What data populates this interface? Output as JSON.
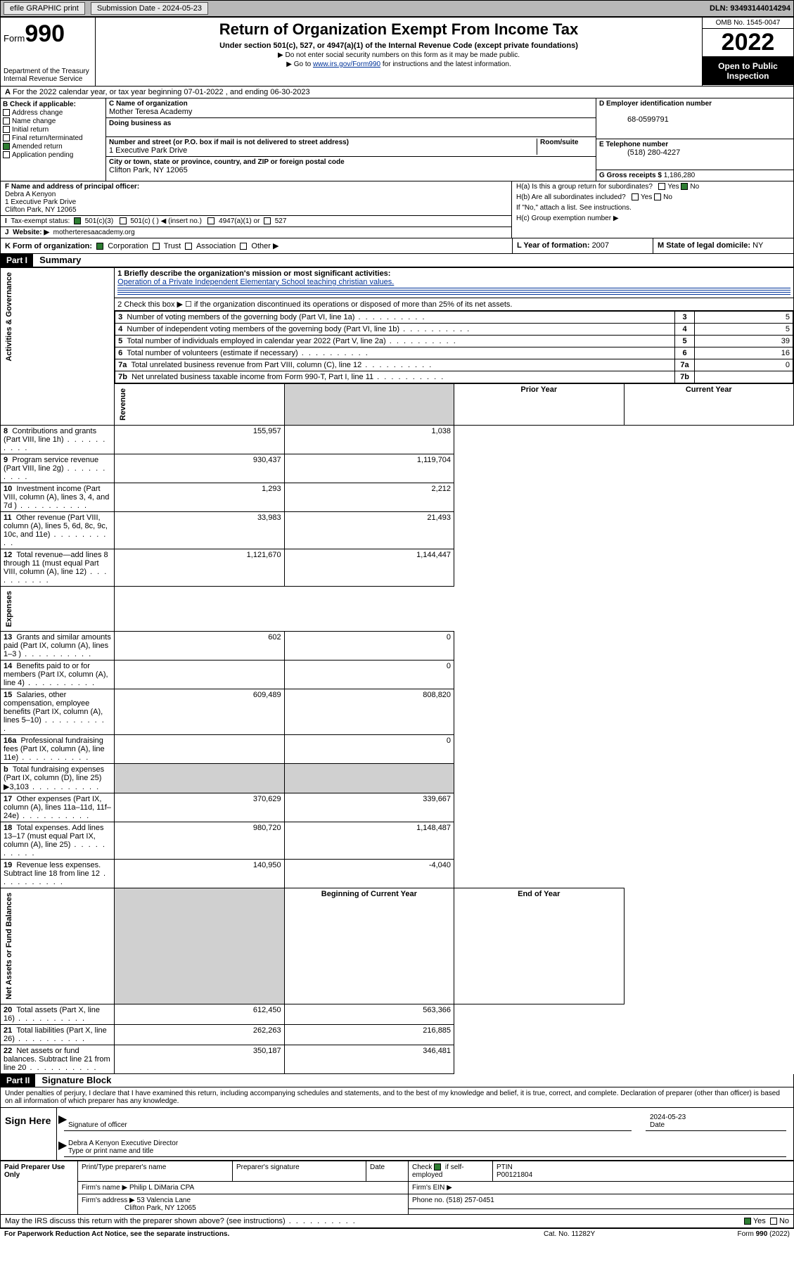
{
  "topbar": {
    "efile": "efile GRAPHIC print",
    "subdate_label": "Submission Date - ",
    "subdate": "2024-05-23",
    "dln_label": "DLN: ",
    "dln": "93493144014294"
  },
  "header": {
    "form_prefix": "Form",
    "form_no": "990",
    "dept": "Department of the Treasury",
    "irs": "Internal Revenue Service",
    "title": "Return of Organization Exempt From Income Tax",
    "subtitle": "Under section 501(c), 527, or 4947(a)(1) of the Internal Revenue Code (except private foundations)",
    "note1": "▶ Do not enter social security numbers on this form as it may be made public.",
    "note2_pre": "▶ Go to ",
    "note2_link": "www.irs.gov/Form990",
    "note2_post": " for instructions and the latest information.",
    "omb": "OMB No. 1545-0047",
    "year": "2022",
    "inspect": "Open to Public Inspection"
  },
  "lineA": "For the 2022 calendar year, or tax year beginning 07-01-2022   , and ending 06-30-2023",
  "boxB": {
    "label": "B Check if applicable:",
    "items": [
      "Address change",
      "Name change",
      "Initial return",
      "Final return/terminated",
      "Amended return",
      "Application pending"
    ],
    "checked_index": 4
  },
  "boxC": {
    "name_label": "C Name of organization",
    "name": "Mother Teresa Academy",
    "dba_label": "Doing business as",
    "street_label": "Number and street (or P.O. box if mail is not delivered to street address)",
    "room_label": "Room/suite",
    "street": "1 Executive Park Drive",
    "city_label": "City or town, state or province, country, and ZIP or foreign postal code",
    "city": "Clifton Park, NY  12065"
  },
  "boxD": {
    "label": "D Employer identification number",
    "val": "68-0599791"
  },
  "boxE": {
    "label": "E Telephone number",
    "val": "(518) 280-4227"
  },
  "boxG": {
    "label": "G Gross receipts $ ",
    "val": "1,186,280"
  },
  "boxF": {
    "label": "F Name and address of principal officer:",
    "name": "Debra A Kenyon",
    "addr1": "1 Executive Park Drive",
    "addr2": "Clifton Park, NY  12065"
  },
  "boxH": {
    "ha": "H(a)  Is this a group return for subordinates?",
    "ha_no": true,
    "hb": "H(b)  Are all subordinates included?",
    "hb_note": "If \"No,\" attach a list. See instructions.",
    "hc": "H(c)  Group exemption number ▶"
  },
  "lineI": {
    "label": "Tax-exempt status:",
    "opt1": "501(c)(3)",
    "opt2": "501(c) (  ) ◀ (insert no.)",
    "opt3": "4947(a)(1) or",
    "opt4": "527"
  },
  "lineJ": {
    "label": "Website: ▶",
    "val": "motherteresaacademy.org"
  },
  "lineK": {
    "label": "K Form of organization:",
    "opts": [
      "Corporation",
      "Trust",
      "Association",
      "Other ▶"
    ],
    "checked": 0,
    "L_label": "L Year of formation: ",
    "L_val": "2007",
    "M_label": "M State of legal domicile: ",
    "M_val": "NY"
  },
  "part1": {
    "hdr": "Part I",
    "title": "Summary",
    "line1_label": "1  Briefly describe the organization's mission or most significant activities:",
    "line1_text": "Operation of a Private Independent Elementary School teaching christian values.",
    "line2": "2   Check this box ▶ ☐  if the organization discontinued its operations or disposed of more than 25% of its net assets.",
    "sides": {
      "gov": "Activities & Governance",
      "rev": "Revenue",
      "exp": "Expenses",
      "net": "Net Assets or Fund Balances"
    },
    "gov_rows": [
      {
        "n": "3",
        "d": "Number of voting members of the governing body (Part VI, line 1a)",
        "v": "5"
      },
      {
        "n": "4",
        "d": "Number of independent voting members of the governing body (Part VI, line 1b)",
        "v": "5"
      },
      {
        "n": "5",
        "d": "Total number of individuals employed in calendar year 2022 (Part V, line 2a)",
        "v": "39"
      },
      {
        "n": "6",
        "d": "Total number of volunteers (estimate if necessary)",
        "v": "16"
      },
      {
        "n": "7a",
        "d": "Total unrelated business revenue from Part VIII, column (C), line 12",
        "v": "0"
      },
      {
        "n": "7b",
        "d": "Net unrelated business taxable income from Form 990-T, Part I, line 11",
        "v": ""
      }
    ],
    "col_hdrs": {
      "prior": "Prior Year",
      "curr": "Current Year",
      "boy": "Beginning of Current Year",
      "eoy": "End of Year"
    },
    "rev_rows": [
      {
        "n": "8",
        "d": "Contributions and grants (Part VIII, line 1h)",
        "p": "155,957",
        "c": "1,038"
      },
      {
        "n": "9",
        "d": "Program service revenue (Part VIII, line 2g)",
        "p": "930,437",
        "c": "1,119,704"
      },
      {
        "n": "10",
        "d": "Investment income (Part VIII, column (A), lines 3, 4, and 7d )",
        "p": "1,293",
        "c": "2,212"
      },
      {
        "n": "11",
        "d": "Other revenue (Part VIII, column (A), lines 5, 6d, 8c, 9c, 10c, and 11e)",
        "p": "33,983",
        "c": "21,493"
      },
      {
        "n": "12",
        "d": "Total revenue—add lines 8 through 11 (must equal Part VIII, column (A), line 12)",
        "p": "1,121,670",
        "c": "1,144,447"
      }
    ],
    "exp_rows": [
      {
        "n": "13",
        "d": "Grants and similar amounts paid (Part IX, column (A), lines 1–3 )",
        "p": "602",
        "c": "0"
      },
      {
        "n": "14",
        "d": "Benefits paid to or for members (Part IX, column (A), line 4)",
        "p": "",
        "c": "0"
      },
      {
        "n": "15",
        "d": "Salaries, other compensation, employee benefits (Part IX, column (A), lines 5–10)",
        "p": "609,489",
        "c": "808,820"
      },
      {
        "n": "16a",
        "d": "Professional fundraising fees (Part IX, column (A), line 11e)",
        "p": "",
        "c": "0"
      },
      {
        "n": "b",
        "d": "Total fundraising expenses (Part IX, column (D), line 25) ▶3,103",
        "p": "SHADE",
        "c": "SHADE"
      },
      {
        "n": "17",
        "d": "Other expenses (Part IX, column (A), lines 11a–11d, 11f–24e)",
        "p": "370,629",
        "c": "339,667"
      },
      {
        "n": "18",
        "d": "Total expenses. Add lines 13–17 (must equal Part IX, column (A), line 25)",
        "p": "980,720",
        "c": "1,148,487"
      },
      {
        "n": "19",
        "d": "Revenue less expenses. Subtract line 18 from line 12",
        "p": "140,950",
        "c": "-4,040"
      }
    ],
    "net_rows": [
      {
        "n": "20",
        "d": "Total assets (Part X, line 16)",
        "p": "612,450",
        "c": "563,366"
      },
      {
        "n": "21",
        "d": "Total liabilities (Part X, line 26)",
        "p": "262,263",
        "c": "216,885"
      },
      {
        "n": "22",
        "d": "Net assets or fund balances. Subtract line 21 from line 20",
        "p": "350,187",
        "c": "346,481"
      }
    ]
  },
  "part2": {
    "hdr": "Part II",
    "title": "Signature Block",
    "decl": "Under penalties of perjury, I declare that I have examined this return, including accompanying schedules and statements, and to the best of my knowledge and belief, it is true, correct, and complete. Declaration of preparer (other than officer) is based on all information of which preparer has any knowledge."
  },
  "sign": {
    "left": "Sign Here",
    "sig_label": "Signature of officer",
    "date_label": "Date",
    "date": "2024-05-23",
    "name": "Debra A Kenyon  Executive Director",
    "name_label": "Type or print name and title"
  },
  "prep": {
    "left": "Paid Preparer Use Only",
    "h1": "Print/Type preparer's name",
    "h2": "Preparer's signature",
    "h3": "Date",
    "h4_pre": "Check",
    "h4_post": "if self-employed",
    "h5": "PTIN",
    "ptin": "P00121804",
    "firm_label": "Firm's name    ▶",
    "firm": "Philip L DiMaria CPA",
    "ein_label": "Firm's EIN ▶",
    "addr_label": "Firm's address ▶",
    "addr1": "53 Valencia Lane",
    "addr2": "Clifton Park, NY  12065",
    "phone_label": "Phone no. ",
    "phone": "(518) 257-0451",
    "discuss": "May the IRS discuss this return with the preparer shown above? (see instructions)",
    "yes": "Yes",
    "no": "No"
  },
  "footer": {
    "left": "For Paperwork Reduction Act Notice, see the separate instructions.",
    "mid": "Cat. No. 11282Y",
    "right_pre": "Form ",
    "right_b": "990",
    "right_post": " (2022)"
  },
  "colors": {
    "link": "#003399",
    "check": "#2e7d32",
    "gray_bg": "#b8b8b8"
  }
}
